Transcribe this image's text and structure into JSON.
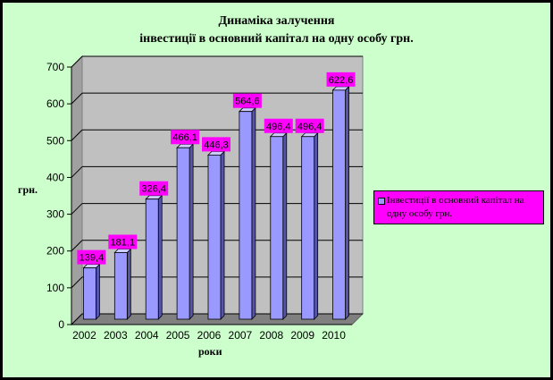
{
  "chart_data": {
    "type": "bar",
    "title_line1": "Динаміка залучення",
    "title_line2": "інвестиції в основний капітал на одну особу грн.",
    "categories": [
      "2002",
      "2003",
      "2004",
      "2005",
      "2006",
      "2007",
      "2008",
      "2009",
      "2010"
    ],
    "series": [
      {
        "name": "Інвестиції в основний капітал на одну особу грн.",
        "values": [
          139.4,
          181.1,
          326.4,
          466.1,
          446.3,
          564.6,
          496.4,
          496.4,
          622.6
        ],
        "labels": [
          "139,4",
          "181,1",
          "326,4",
          "466,1",
          "446,3",
          "564,6",
          "496,4",
          "496,4",
          "622,6"
        ]
      }
    ],
    "xlabel": "роки",
    "ylabel": "грн.",
    "ylim": [
      0,
      700
    ],
    "yticks": [
      "0",
      "100",
      "200",
      "300",
      "400",
      "500",
      "600",
      "700"
    ],
    "legend_position": "right",
    "grid": true,
    "colors": {
      "bar": "#9999ff",
      "bar_dark": "#5555aa",
      "label_bg": "#ff00ff",
      "background": "#ccffcc",
      "wall": "#c0c0c0"
    }
  }
}
